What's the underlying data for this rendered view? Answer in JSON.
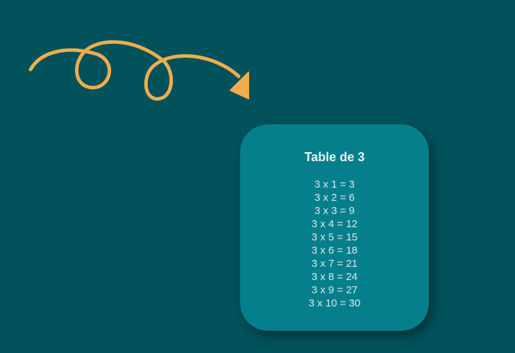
{
  "colors": {
    "background": "#01525a",
    "card": "#067f8c",
    "arrow": "#f0ad4e",
    "text": "#e6eef0"
  },
  "decoration": {
    "icon": "swirl-arrow-icon"
  },
  "card": {
    "title": "Table de 3",
    "rows": [
      "3 x 1 = 3",
      "3 x 2 = 6",
      "3 x 3 = 9",
      "3 x 4 = 12",
      "3 x 5 = 15",
      "3 x 6 = 18",
      "3 x 7 = 21",
      "3 x 8 = 24",
      "3 x 9 = 27",
      "3 x 10 = 30"
    ]
  }
}
